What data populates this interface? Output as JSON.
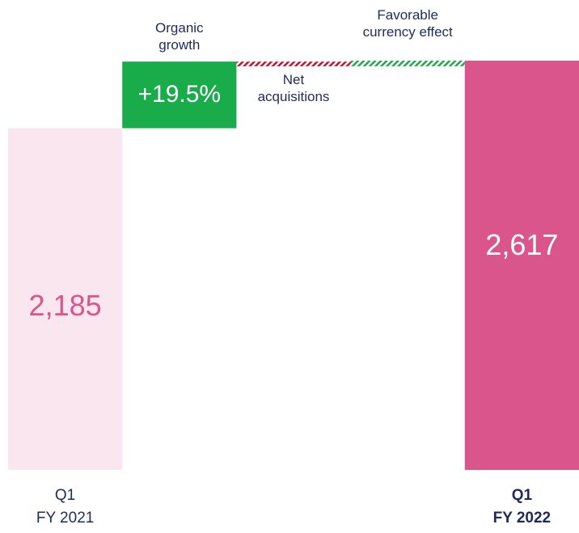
{
  "chart_data": {
    "type": "waterfall",
    "categories": [
      "Q1\nFY 2021",
      "Organic\ngrowth",
      "Net\nacquisitions",
      "Favorable\ncurrency effect",
      "Q1\nFY 2022"
    ],
    "steps": [
      "total",
      "delta",
      "delta",
      "delta",
      "total"
    ],
    "values": [
      2185,
      426,
      -30,
      36,
      2617
    ],
    "value_labels": [
      "2,185",
      null,
      null,
      null,
      "2,617"
    ],
    "growth_label": "+19.5%",
    "colors": [
      "#f9e6ef",
      "#1aab4b",
      "#c8102e",
      "#1aab4b",
      "#d9558b"
    ],
    "label_colors": [
      "#d9558b",
      "#ffffff",
      null,
      null,
      "#ffffff"
    ],
    "patterns": [
      null,
      null,
      "hatch",
      "hatch",
      null
    ],
    "bold": [
      false,
      false,
      false,
      false,
      true
    ]
  }
}
